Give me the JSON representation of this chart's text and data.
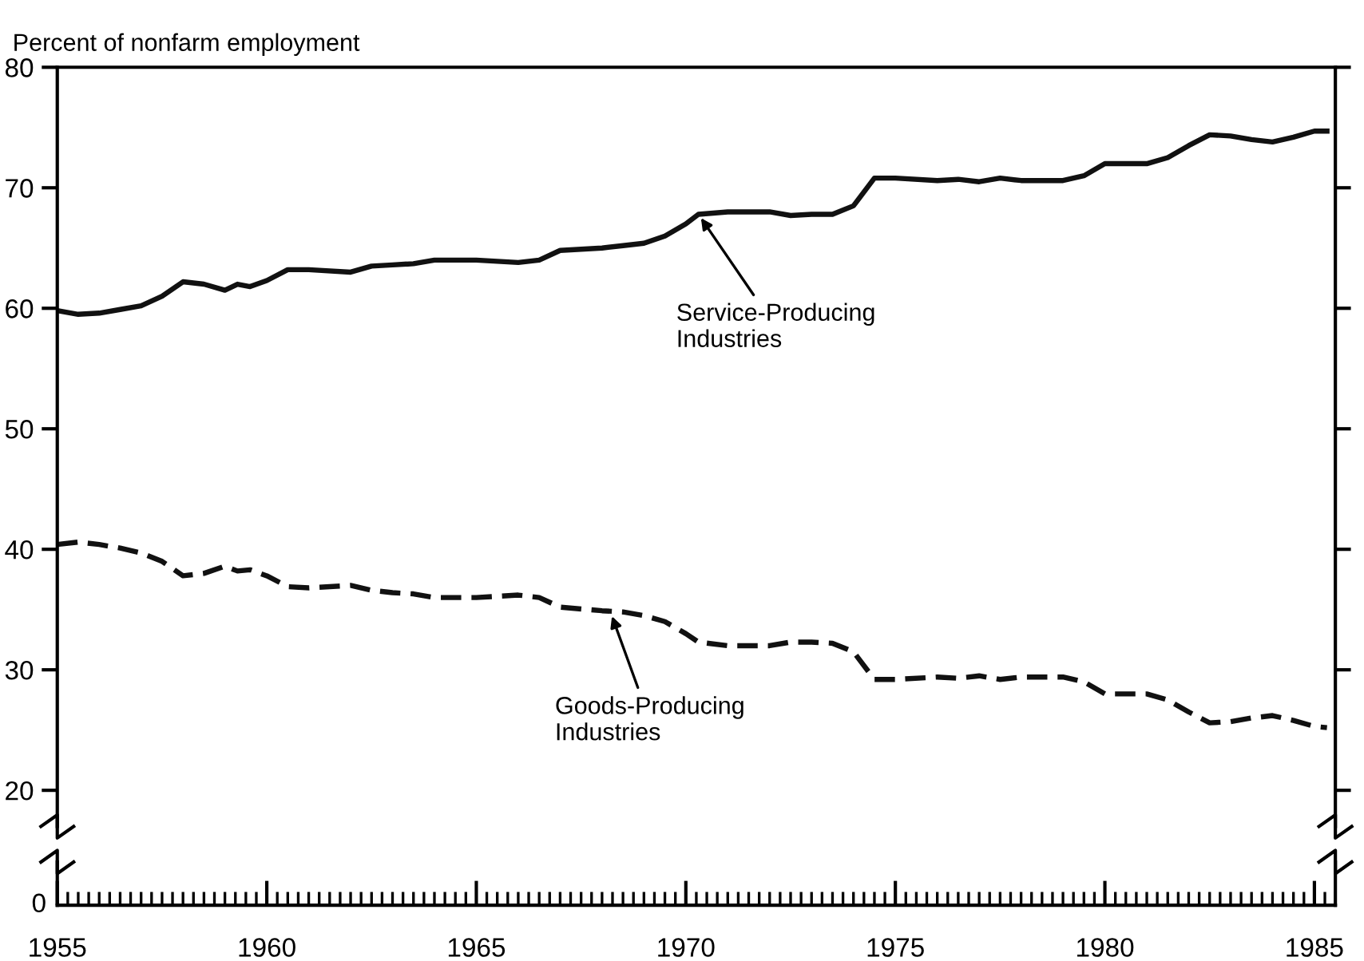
{
  "chart_data": {
    "type": "line",
    "ylabel": "Percent of nonfarm employment",
    "xlim": [
      1955,
      1985.5
    ],
    "xticks": [
      1955,
      1960,
      1965,
      1970,
      1975,
      1980,
      1985
    ],
    "ylim": [
      17,
      80
    ],
    "yticks": [
      20,
      30,
      40,
      50,
      60,
      70,
      80
    ],
    "grid": false,
    "legend": false,
    "marker": "none",
    "series": [
      {
        "color": "#111111",
        "line_style": "solid",
        "x": [
          1955,
          1955.5,
          1956,
          1956.5,
          1957,
          1957.5,
          1958,
          1958.5,
          1959,
          1959.3,
          1959.6,
          1960,
          1960.5,
          1961,
          1962,
          1962.5,
          1963,
          1963.5,
          1964,
          1965,
          1966,
          1966.5,
          1967,
          1968,
          1968.5,
          1969,
          1969.5,
          1970,
          1970.3,
          1971,
          1972,
          1972.5,
          1973,
          1973.5,
          1974,
          1974.5,
          1975,
          1976,
          1976.5,
          1977,
          1977.5,
          1978,
          1979,
          1979.5,
          1980,
          1981,
          1981.5,
          1982,
          1982.5,
          1983,
          1983.5,
          1984,
          1984.5,
          1985,
          1985.3
        ],
        "values": [
          59.8,
          59.5,
          59.6,
          59.9,
          60.2,
          61.0,
          62.2,
          62.0,
          61.5,
          62.0,
          61.8,
          62.3,
          63.2,
          63.2,
          63.0,
          63.5,
          63.6,
          63.7,
          64.0,
          64.0,
          63.8,
          64.0,
          64.8,
          65.0,
          65.2,
          65.4,
          66.0,
          67.0,
          67.8,
          68.0,
          68.0,
          67.7,
          67.8,
          67.8,
          68.5,
          70.8,
          70.8,
          70.6,
          70.7,
          70.5,
          70.8,
          70.6,
          70.6,
          71.0,
          72.0,
          72.0,
          72.5,
          73.5,
          74.4,
          74.3,
          74.0,
          73.8,
          74.2,
          74.7,
          74.7
        ]
      },
      {
        "color": "#111111",
        "line_style": "dashed",
        "x": [
          1955,
          1955.5,
          1956,
          1956.5,
          1957,
          1957.5,
          1958,
          1958.5,
          1959,
          1959.3,
          1959.6,
          1960,
          1960.5,
          1961,
          1962,
          1962.5,
          1963,
          1963.5,
          1964,
          1965,
          1966,
          1966.5,
          1967,
          1968,
          1968.5,
          1969,
          1969.5,
          1970,
          1970.3,
          1971,
          1972,
          1972.5,
          1973,
          1973.5,
          1974,
          1974.5,
          1975,
          1976,
          1976.5,
          1977,
          1977.5,
          1978,
          1979,
          1979.5,
          1980,
          1981,
          1981.5,
          1982,
          1982.5,
          1983,
          1983.5,
          1984,
          1984.5,
          1985,
          1985.3
        ],
        "values": [
          40.4,
          40.6,
          40.4,
          40.1,
          39.7,
          39.0,
          37.8,
          38.0,
          38.6,
          38.2,
          38.3,
          37.8,
          36.9,
          36.8,
          37.0,
          36.6,
          36.4,
          36.3,
          36.0,
          36.0,
          36.2,
          36.0,
          35.2,
          34.9,
          34.8,
          34.5,
          34.0,
          33.0,
          32.3,
          32.0,
          32.0,
          32.3,
          32.3,
          32.2,
          31.5,
          29.2,
          29.2,
          29.4,
          29.3,
          29.5,
          29.2,
          29.4,
          29.4,
          29.0,
          28.0,
          28.0,
          27.5,
          26.5,
          25.6,
          25.7,
          26.0,
          26.2,
          25.8,
          25.3,
          25.2
        ]
      }
    ],
    "annotations": [
      {
        "text": "Service-Producing\nIndustries",
        "x": 1970.3,
        "y": 67.8
      },
      {
        "text": "Goods-Producing\nIndustries",
        "x": 1968.2,
        "y": 34.8
      },
      "0"
    ]
  }
}
